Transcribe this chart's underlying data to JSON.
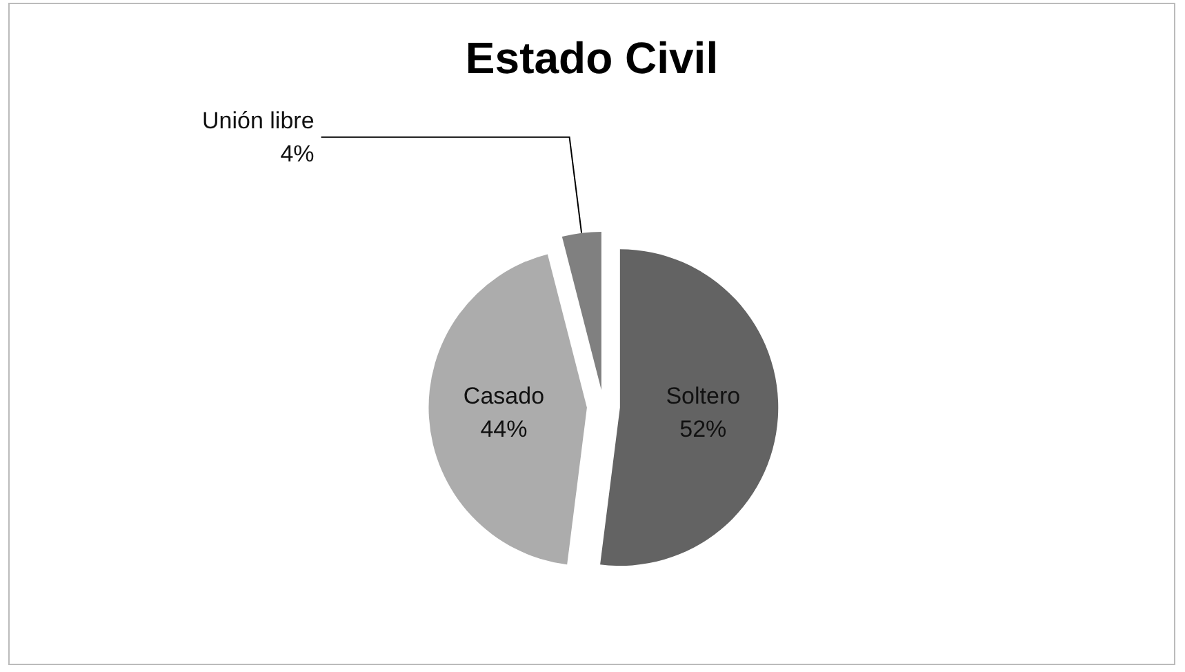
{
  "chart_data": {
    "type": "pie",
    "title": "Estado Civil",
    "categories": [
      "Soltero",
      "Casado",
      "Unión libre"
    ],
    "values": [
      52,
      44,
      4
    ],
    "colors": [
      "#636363",
      "#acacac",
      "#808080"
    ],
    "value_labels": [
      "52%",
      "44%",
      "4%"
    ]
  }
}
